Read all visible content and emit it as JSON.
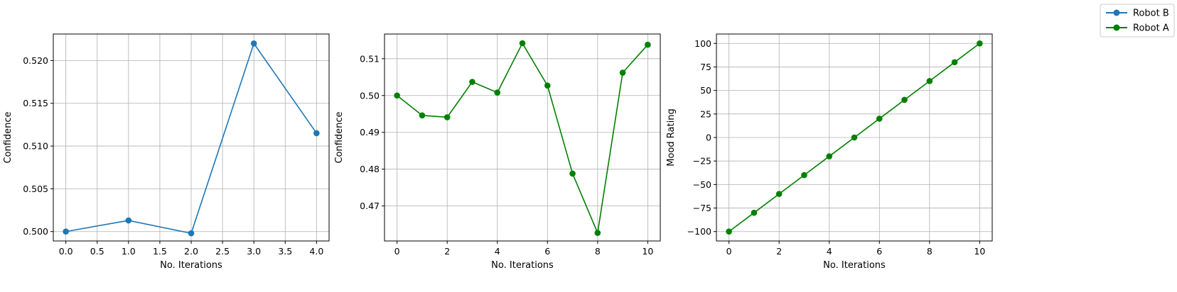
{
  "chart_data": [
    {
      "type": "line",
      "xlabel": "No. Iterations",
      "ylabel": "Confidence",
      "x": [
        0,
        1,
        2,
        3,
        4
      ],
      "xticks": [
        0.0,
        0.5,
        1.0,
        1.5,
        2.0,
        2.5,
        3.0,
        3.5,
        4.0
      ],
      "xtick_labels": [
        "0.0",
        "0.5",
        "1.0",
        "1.5",
        "2.0",
        "2.5",
        "3.0",
        "3.5",
        "4.0"
      ],
      "xlim": [
        -0.2,
        4.2
      ],
      "yticks": [
        0.5,
        0.505,
        0.51,
        0.515,
        0.52
      ],
      "ytick_labels": [
        "0.500",
        "0.505",
        "0.510",
        "0.515",
        "0.520"
      ],
      "ylim": [
        0.4989,
        0.5231
      ],
      "grid": true,
      "series": [
        {
          "name": "Robot B",
          "color": "#1f77b4",
          "marker": "circle",
          "values": [
            0.5,
            0.5013,
            0.4998,
            0.522,
            0.5115
          ]
        }
      ]
    },
    {
      "type": "line",
      "xlabel": "No. Iterations",
      "ylabel": "Confidence",
      "x": [
        0,
        1,
        2,
        3,
        4,
        5,
        6,
        7,
        8,
        9,
        10
      ],
      "xticks": [
        0,
        2,
        4,
        6,
        8,
        10
      ],
      "xtick_labels": [
        "0",
        "2",
        "4",
        "6",
        "8",
        "10"
      ],
      "xlim": [
        -0.5,
        10.5
      ],
      "yticks": [
        0.47,
        0.48,
        0.49,
        0.5,
        0.51
      ],
      "ytick_labels": [
        "0.47",
        "0.48",
        "0.49",
        "0.50",
        "0.51"
      ],
      "ylim": [
        0.4605,
        0.5167
      ],
      "grid": true,
      "series": [
        {
          "name": "Robot A",
          "color": "#008000",
          "marker": "circle",
          "values": [
            0.5,
            0.4946,
            0.4941,
            0.5037,
            0.5008,
            0.5142,
            0.5027,
            0.4788,
            0.4627,
            0.5062,
            0.5138
          ]
        }
      ]
    },
    {
      "type": "line",
      "xlabel": "No. Iterations",
      "ylabel": "Mood Rating",
      "x": [
        0,
        1,
        2,
        3,
        4,
        5,
        6,
        7,
        8,
        9,
        10
      ],
      "xticks": [
        0,
        2,
        4,
        6,
        8,
        10
      ],
      "xtick_labels": [
        "0",
        "2",
        "4",
        "6",
        "8",
        "10"
      ],
      "xlim": [
        -0.5,
        10.5
      ],
      "yticks": [
        -100,
        -75,
        -50,
        -25,
        0,
        25,
        50,
        75,
        100
      ],
      "ytick_labels": [
        "−100",
        "−75",
        "−50",
        "−25",
        "0",
        "25",
        "50",
        "75",
        "100"
      ],
      "ylim": [
        -110,
        110
      ],
      "grid": true,
      "series": [
        {
          "name": "Robot A",
          "color": "#008000",
          "marker": "circle",
          "values": [
            -100,
            -80,
            -60,
            -40,
            -20,
            0,
            20,
            40,
            60,
            80,
            100
          ]
        }
      ]
    }
  ],
  "legend": {
    "placement": "top-right",
    "entries": [
      {
        "label": "Robot B",
        "color": "#1f77b4"
      },
      {
        "label": "Robot A",
        "color": "#008000"
      }
    ]
  }
}
